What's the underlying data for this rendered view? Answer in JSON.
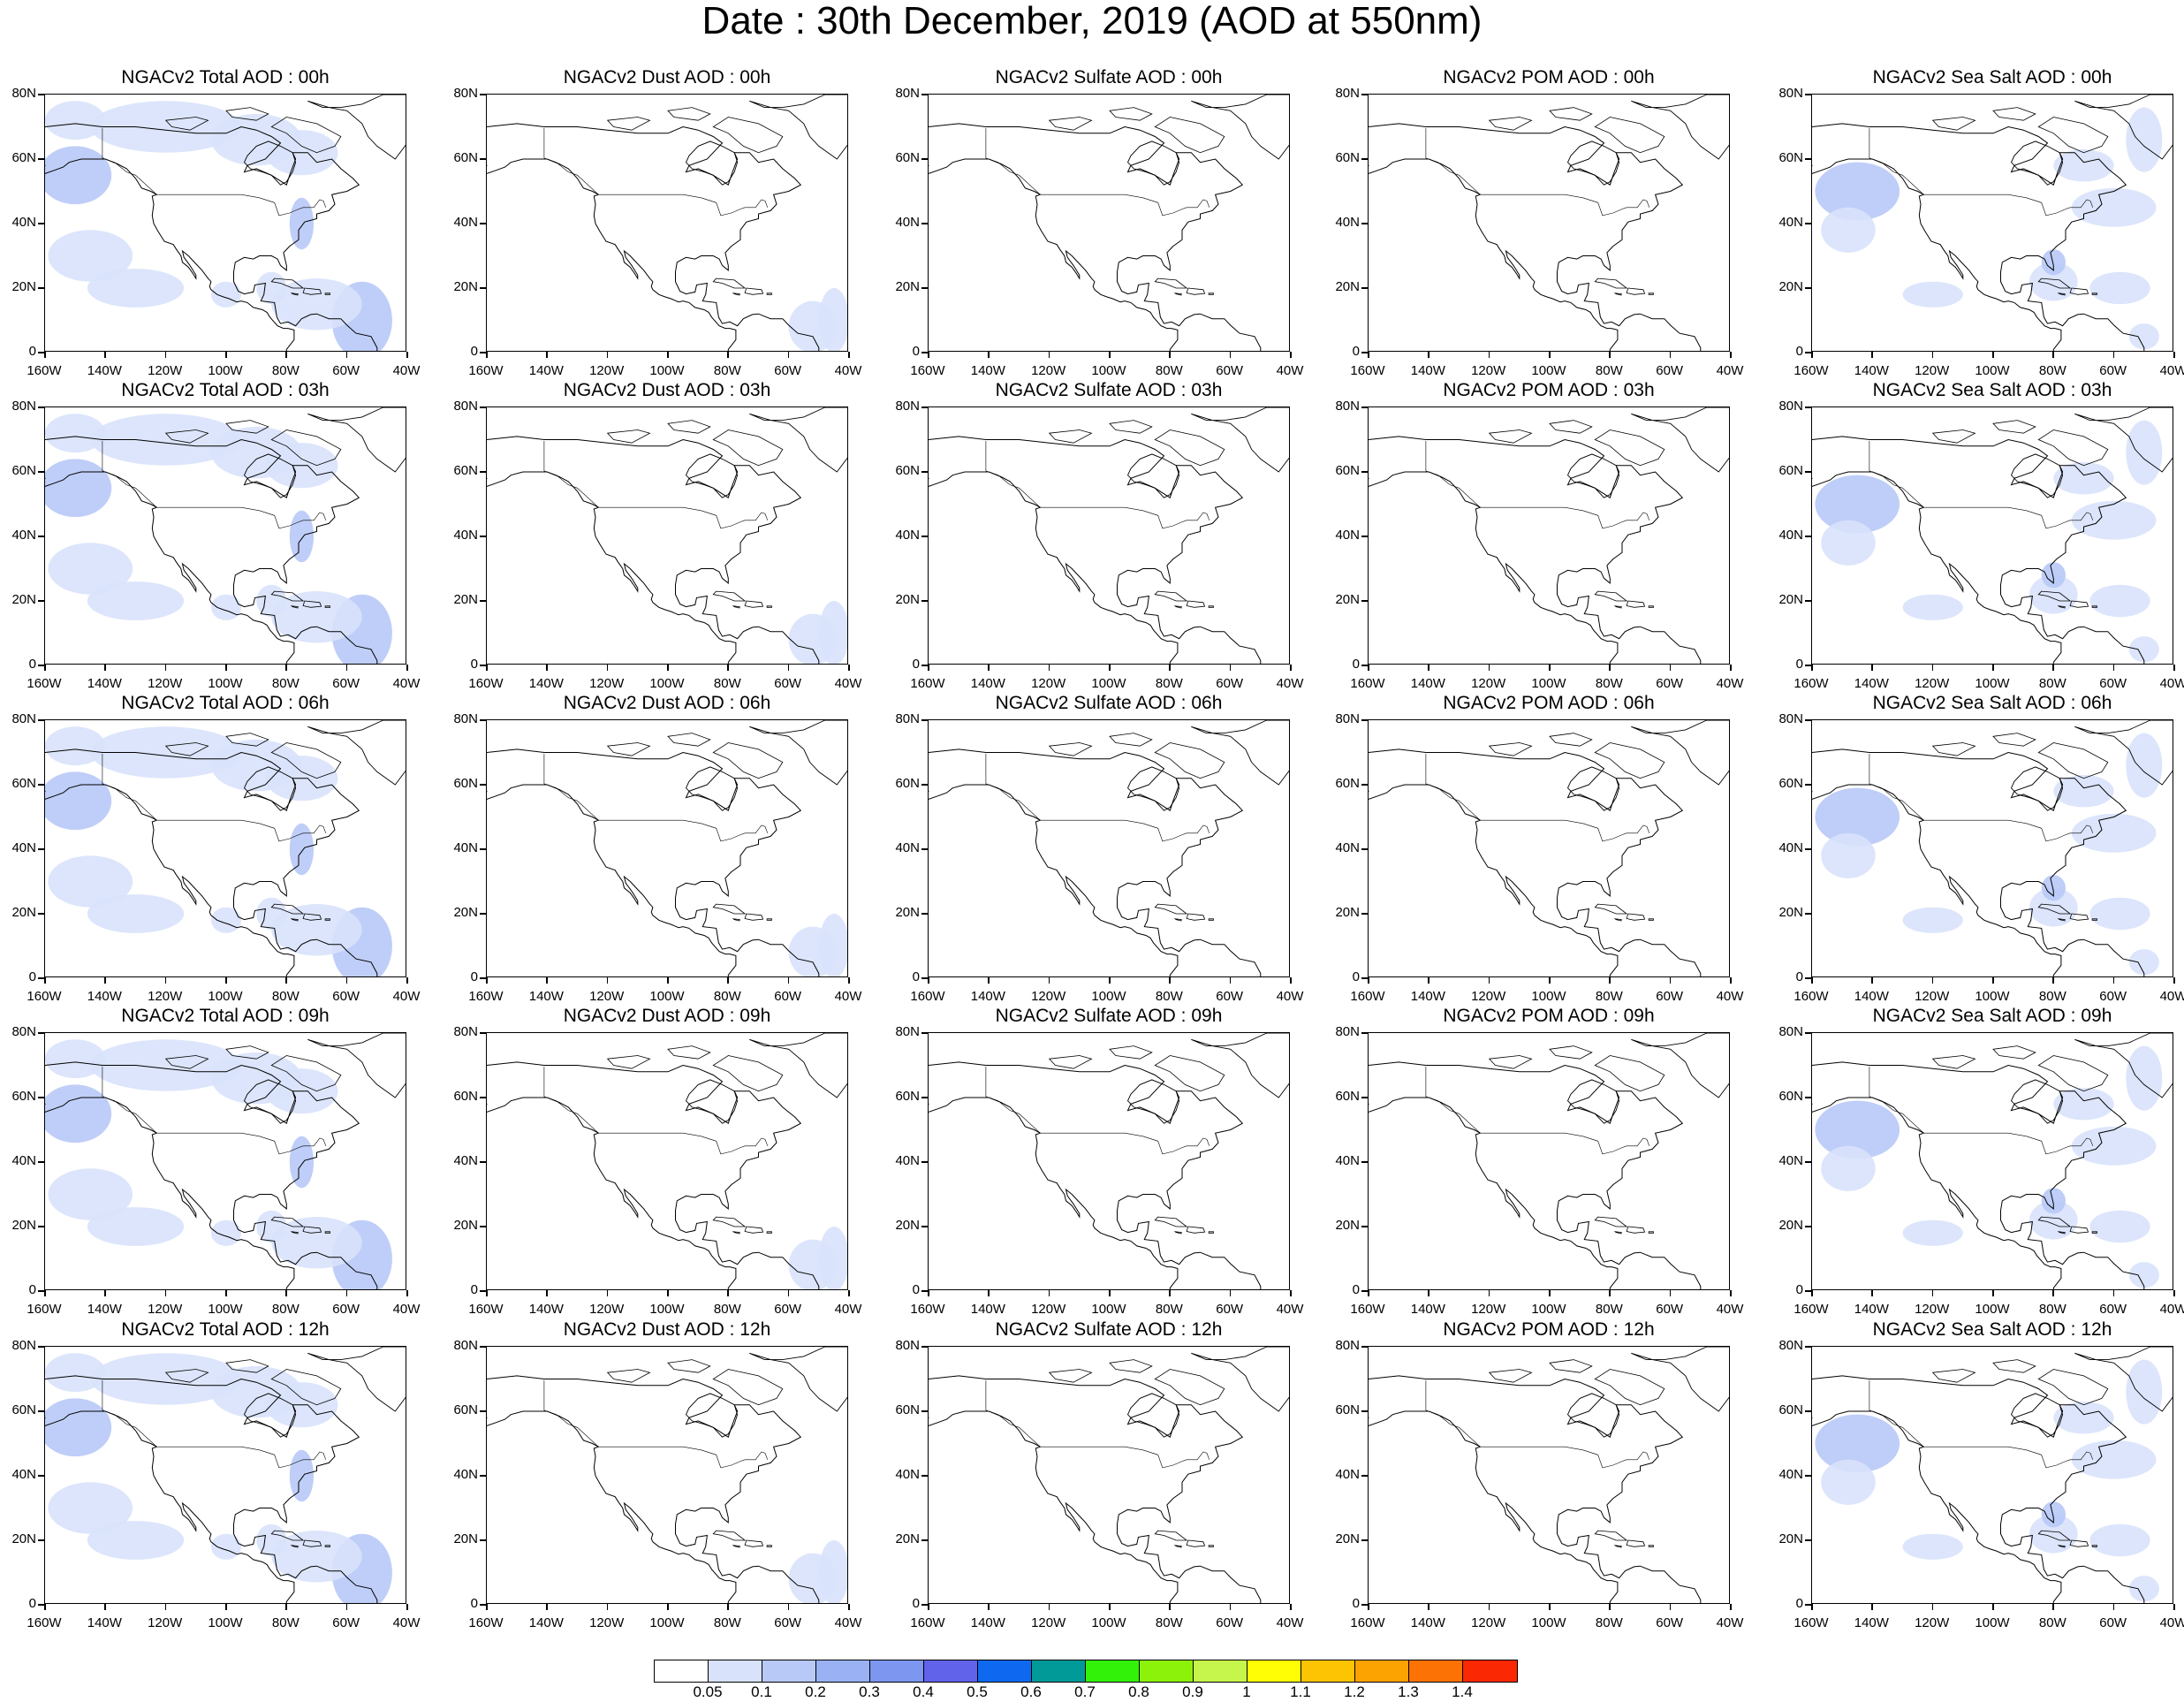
{
  "title": "Date : 30th December, 2019 (AOD at 550nm)",
  "y_axis_labels": [
    "80N",
    "60N",
    "40N",
    "20N",
    "0"
  ],
  "x_axis_labels": [
    "160W",
    "140W",
    "120W",
    "100W",
    "80W",
    "60W",
    "40W"
  ],
  "panels": [
    [
      {
        "title": "NGACv2 Total AOD : 00h",
        "species": "total"
      },
      {
        "title": "NGACv2 Dust AOD : 00h",
        "species": "dust"
      },
      {
        "title": "NGACv2 Sulfate AOD : 00h",
        "species": "sulfate"
      },
      {
        "title": "NGACv2 POM AOD : 00h",
        "species": "pom"
      },
      {
        "title": "NGACv2 Sea Salt AOD : 00h",
        "species": "seasalt"
      }
    ],
    [
      {
        "title": "NGACv2 Total AOD : 03h",
        "species": "total"
      },
      {
        "title": "NGACv2 Dust AOD : 03h",
        "species": "dust"
      },
      {
        "title": "NGACv2 Sulfate AOD : 03h",
        "species": "sulfate"
      },
      {
        "title": "NGACv2 POM AOD : 03h",
        "species": "pom"
      },
      {
        "title": "NGACv2 Sea Salt AOD : 03h",
        "species": "seasalt"
      }
    ],
    [
      {
        "title": "NGACv2 Total AOD : 06h",
        "species": "total"
      },
      {
        "title": "NGACv2 Dust AOD : 06h",
        "species": "dust"
      },
      {
        "title": "NGACv2 Sulfate AOD : 06h",
        "species": "sulfate"
      },
      {
        "title": "NGACv2 POM AOD : 06h",
        "species": "pom"
      },
      {
        "title": "NGACv2 Sea Salt AOD : 06h",
        "species": "seasalt"
      }
    ],
    [
      {
        "title": "NGACv2 Total AOD : 09h",
        "species": "total"
      },
      {
        "title": "NGACv2 Dust AOD : 09h",
        "species": "dust"
      },
      {
        "title": "NGACv2 Sulfate AOD : 09h",
        "species": "sulfate"
      },
      {
        "title": "NGACv2 POM AOD : 09h",
        "species": "pom"
      },
      {
        "title": "NGACv2 Sea Salt  AOD : 09h",
        "species": "seasalt"
      }
    ],
    [
      {
        "title": "NGACv2 Total AOD  : 12h",
        "species": "total"
      },
      {
        "title": "NGACv2 Dust AOD : 12h",
        "species": "dust"
      },
      {
        "title": "NGACv2 Sulfate AOD : 12h",
        "species": "sulfate"
      },
      {
        "title": "NGACv2 POM  AOD : 12h",
        "species": "pom"
      },
      {
        "title": "NGACv2 Sea Salt  AOD : 12h",
        "species": "seasalt"
      }
    ]
  ],
  "colorbar": {
    "colors": [
      "#ffffff",
      "#d8e2fb",
      "#b8c9f7",
      "#9ab2f3",
      "#7d96f0",
      "#6163ea",
      "#0f69f0",
      "#029a99",
      "#33f20a",
      "#8df20a",
      "#c6f64c",
      "#fffe04",
      "#fdc404",
      "#fca201",
      "#fc7205",
      "#fb2804"
    ],
    "labels": [
      "0.05",
      "0.1",
      "0.2",
      "0.3",
      "0.4",
      "0.5",
      "0.6",
      "0.7",
      "0.8",
      "0.9",
      "1",
      "1.1",
      "1.2",
      "1.3",
      "1.4"
    ]
  }
}
